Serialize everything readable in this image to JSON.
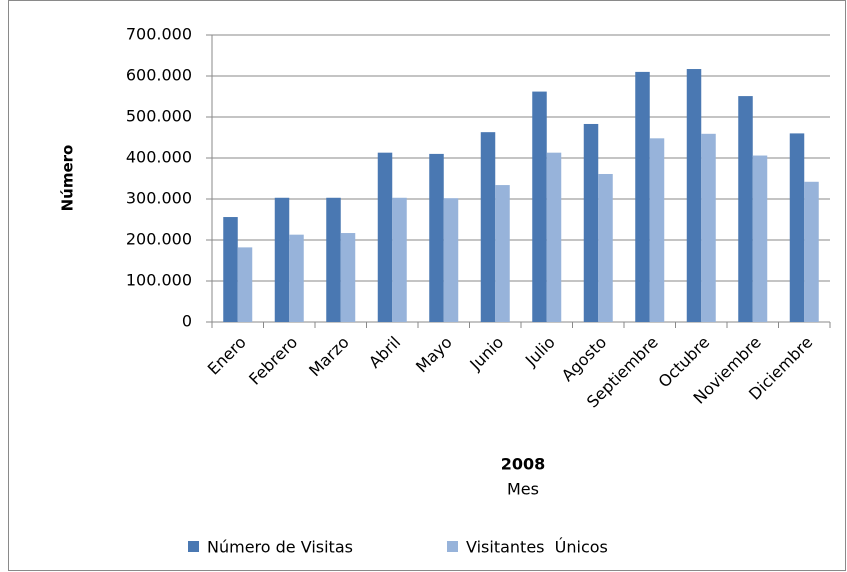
{
  "chart_data": {
    "type": "bar",
    "ylabel": "Número",
    "xlabel": [
      "2008",
      "Mes"
    ],
    "categories": [
      "Enero",
      "Febrero",
      "Marzo",
      "Abril",
      "Mayo",
      "Junio",
      "Julio",
      "Agosto",
      "Septiembre",
      "Octubre",
      "Noviembre",
      "Diciembre"
    ],
    "series": [
      {
        "name": "Número de Visitas",
        "color": "#4a78b2",
        "values": [
          256000,
          303000,
          303000,
          413000,
          410000,
          463000,
          562000,
          483000,
          610000,
          617000,
          551000,
          460000
        ]
      },
      {
        "name": "Visitantes  Únicos",
        "color": "#97b3da",
        "values": [
          182000,
          213000,
          217000,
          303000,
          302000,
          334000,
          413000,
          361000,
          448000,
          459000,
          406000,
          342000
        ]
      }
    ],
    "ylim": [
      0,
      700000
    ],
    "yticks": [
      0,
      {
        "value": 100000,
        "label": "100.000"
      },
      {
        "value": 200000,
        "label": "200.000"
      },
      {
        "value": 300000,
        "label": "300.000"
      },
      {
        "value": 400000,
        "label": "400.000"
      },
      {
        "value": 500000,
        "label": "500.000"
      },
      {
        "value": 600000,
        "label": "600.000"
      },
      {
        "value": 700000,
        "label": "700.000"
      }
    ],
    "grid": true,
    "legend": "bottom"
  }
}
